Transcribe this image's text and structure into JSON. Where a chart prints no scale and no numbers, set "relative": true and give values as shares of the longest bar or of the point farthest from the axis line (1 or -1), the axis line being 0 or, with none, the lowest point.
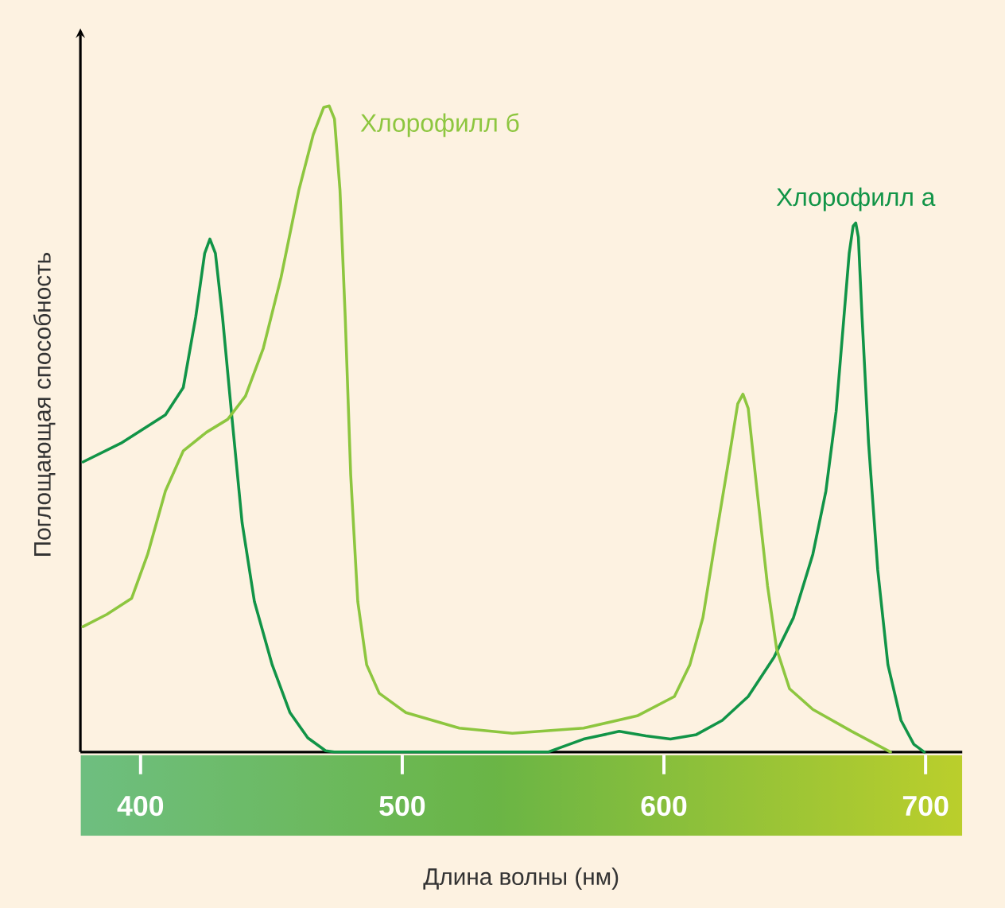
{
  "chart_data": {
    "type": "line",
    "relative": true,
    "xlabel": "Длина волны (нм)",
    "ylabel": "Поглощающая способность",
    "xlim": [
      377,
      714
    ],
    "xticks": [
      400,
      500,
      600,
      700
    ],
    "tick_labels": "x",
    "marker": "none",
    "line_style": "solid",
    "series": [
      {
        "name": "Хлорофилл а",
        "color": "#119447",
        "x": [
          378,
          392.5,
          409.5,
          416.3,
          421.1,
          424.5,
          426.5,
          428.6,
          431.3,
          434.7,
          438.8,
          443.5,
          450.3,
          457.1,
          463.9,
          470.7,
          474,
          555.7,
          569.3,
          582.9,
          593.1,
          602.5,
          612.4,
          622.3,
          632.2,
          642.1,
          649.5,
          656.9,
          661.9,
          665.8,
          668.8,
          670.8,
          672.3,
          673.3,
          674.3,
          675.7,
          678.2,
          681.7,
          685.6,
          690.6,
          695.5,
          699.5
        ],
        "values": [
          0.449,
          0.478,
          0.522,
          0.564,
          0.674,
          0.772,
          0.794,
          0.772,
          0.674,
          0.527,
          0.355,
          0.233,
          0.135,
          0.061,
          0.022,
          0.002,
          0,
          0,
          0.02,
          0.032,
          0.025,
          0.02,
          0.027,
          0.049,
          0.086,
          0.147,
          0.208,
          0.306,
          0.404,
          0.527,
          0.674,
          0.772,
          0.814,
          0.819,
          0.797,
          0.674,
          0.478,
          0.282,
          0.135,
          0.049,
          0.012,
          0
        ]
      },
      {
        "name": "Хлорофилл б",
        "color": "#8dc63f",
        "x": [
          378,
          387.1,
          396.6,
          402.7,
          409.5,
          416.3,
          425.2,
          433.3,
          440.1,
          446.9,
          453.7,
          460.5,
          466,
          470,
          472.1,
          474.1,
          476.2,
          478.2,
          480.3,
          483,
          486.4,
          491.2,
          501.4,
          521.8,
          542.1,
          569.3,
          589.8,
          604,
          609.9,
          614.9,
          619.8,
          624.8,
          628.2,
          630.2,
          632.2,
          635.6,
          639.6,
          643.1,
          648,
          656.9,
          671.8,
          686.6
        ],
        "values": [
          0.194,
          0.213,
          0.238,
          0.306,
          0.404,
          0.466,
          0.495,
          0.515,
          0.551,
          0.625,
          0.735,
          0.87,
          0.956,
          0.998,
          1,
          0.98,
          0.87,
          0.674,
          0.429,
          0.233,
          0.135,
          0.091,
          0.061,
          0.037,
          0.029,
          0.037,
          0.056,
          0.086,
          0.135,
          0.208,
          0.331,
          0.453,
          0.539,
          0.554,
          0.532,
          0.404,
          0.257,
          0.159,
          0.098,
          0.066,
          0.032,
          0
        ]
      }
    ]
  }
}
